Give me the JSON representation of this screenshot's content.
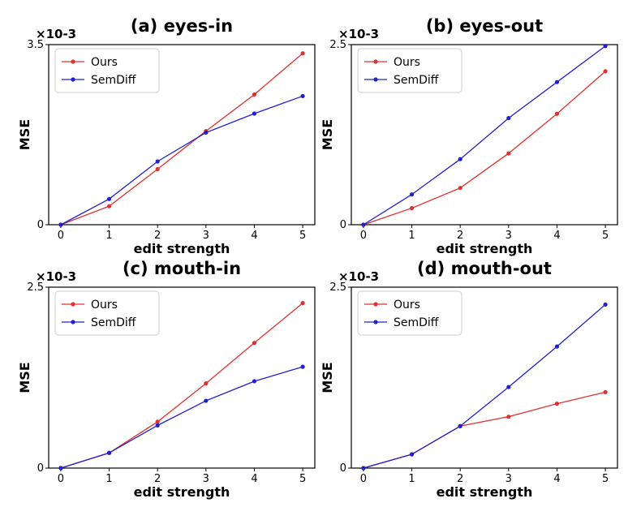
{
  "figure": {
    "colors": {
      "Ours": "#e03030",
      "SemDiff": "#2020d0",
      "frame": "#000000"
    }
  },
  "chart_data": [
    {
      "type": "line",
      "title": "(a) eyes-in",
      "xlabel": "edit strength",
      "ylabel": "MSE",
      "y_scale_label": "×10-3",
      "xlim": [
        0,
        5
      ],
      "ylim": [
        0,
        3.5
      ],
      "x": [
        0,
        1,
        2,
        3,
        4,
        5
      ],
      "x_ticks": [
        "0",
        "1",
        "2",
        "3",
        "4",
        "5"
      ],
      "y_ticks": [
        {
          "value": 0,
          "label": "0"
        },
        {
          "value": 3.5,
          "label": "3.5"
        }
      ],
      "legend_position": "upper-left",
      "series": [
        {
          "name": "Ours",
          "values": [
            0,
            0.36,
            1.08,
            1.82,
            2.53,
            3.33
          ]
        },
        {
          "name": "SemDiff",
          "values": [
            0,
            0.5,
            1.23,
            1.79,
            2.16,
            2.5
          ]
        }
      ]
    },
    {
      "type": "line",
      "title": "(b) eyes-out",
      "xlabel": "edit strength",
      "ylabel": "MSE",
      "y_scale_label": "×10-3",
      "xlim": [
        0,
        5
      ],
      "ylim": [
        0,
        2.5
      ],
      "x": [
        0,
        1,
        2,
        3,
        4,
        5
      ],
      "x_ticks": [
        "0",
        "1",
        "2",
        "3",
        "4",
        "5"
      ],
      "y_ticks": [
        {
          "value": 0,
          "label": "0"
        },
        {
          "value": 2.5,
          "label": "2.5"
        }
      ],
      "legend_position": "upper-left",
      "series": [
        {
          "name": "Ours",
          "values": [
            0,
            0.23,
            0.51,
            0.99,
            1.54,
            2.13
          ]
        },
        {
          "name": "SemDiff",
          "values": [
            0,
            0.42,
            0.91,
            1.48,
            1.98,
            2.48
          ]
        }
      ]
    },
    {
      "type": "line",
      "title": "(c) mouth-in",
      "xlabel": "edit strength",
      "ylabel": "MSE",
      "y_scale_label": "×10-3",
      "xlim": [
        0,
        5
      ],
      "ylim": [
        0,
        2.5
      ],
      "x": [
        0,
        1,
        2,
        3,
        4,
        5
      ],
      "x_ticks": [
        "0",
        "1",
        "2",
        "3",
        "4",
        "5"
      ],
      "y_ticks": [
        {
          "value": 0,
          "label": "0"
        },
        {
          "value": 2.5,
          "label": "2.5"
        }
      ],
      "legend_position": "upper-left",
      "series": [
        {
          "name": "Ours",
          "values": [
            0,
            0.21,
            0.64,
            1.17,
            1.73,
            2.28
          ]
        },
        {
          "name": "SemDiff",
          "values": [
            0,
            0.21,
            0.59,
            0.93,
            1.2,
            1.4
          ]
        }
      ]
    },
    {
      "type": "line",
      "title": "(d) mouth-out",
      "xlabel": "edit strength",
      "ylabel": "MSE",
      "y_scale_label": "×10-3",
      "xlim": [
        0,
        5
      ],
      "ylim": [
        0,
        2.5
      ],
      "x": [
        0,
        1,
        2,
        3,
        4,
        5
      ],
      "x_ticks": [
        "0",
        "1",
        "2",
        "3",
        "4",
        "5"
      ],
      "y_ticks": [
        {
          "value": 0,
          "label": "0"
        },
        {
          "value": 2.5,
          "label": "2.5"
        }
      ],
      "legend_position": "upper-left",
      "series": [
        {
          "name": "Ours",
          "values": [
            0,
            0.19,
            0.58,
            0.71,
            0.89,
            1.05
          ]
        },
        {
          "name": "SemDiff",
          "values": [
            0,
            0.19,
            0.58,
            1.12,
            1.68,
            2.26
          ]
        }
      ]
    }
  ]
}
